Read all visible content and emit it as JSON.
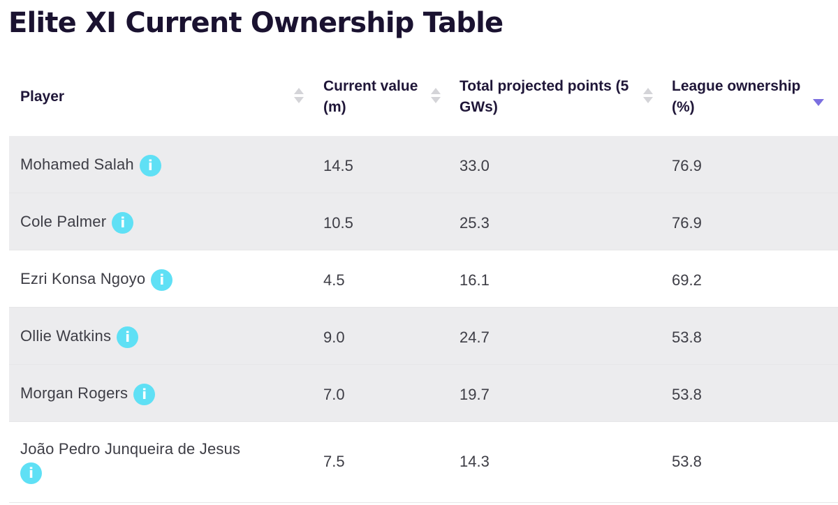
{
  "title": "Elite XI Current Ownership Table",
  "columns": {
    "player": "Player",
    "value_line1": "Current value",
    "value_line2": "(m)",
    "points_line1": "Total projected points (5",
    "points_line2": "GWs)",
    "ownership_line1": "League ownership",
    "ownership_line2": "(%)"
  },
  "info_glyph": "i",
  "rows": [
    {
      "player": "Mohamed Salah",
      "value": "14.5",
      "points": "33.0",
      "ownership": "76.9"
    },
    {
      "player": "Cole Palmer",
      "value": "10.5",
      "points": "25.3",
      "ownership": "76.9"
    },
    {
      "player": "Ezri Konsa Ngoyo",
      "value": "4.5",
      "points": "16.1",
      "ownership": "69.2"
    },
    {
      "player": "Ollie Watkins",
      "value": "9.0",
      "points": "24.7",
      "ownership": "53.8"
    },
    {
      "player": "Morgan Rogers",
      "value": "7.0",
      "points": "19.7",
      "ownership": "53.8"
    },
    {
      "player": "João Pedro Junqueira de Jesus",
      "value": "7.5",
      "points": "14.3",
      "ownership": "53.8"
    }
  ],
  "colors": {
    "info_icon": "#5fe0f5",
    "sort_active": "#7b6fe0",
    "row_shade": "#ececee",
    "title": "#1a1230"
  }
}
